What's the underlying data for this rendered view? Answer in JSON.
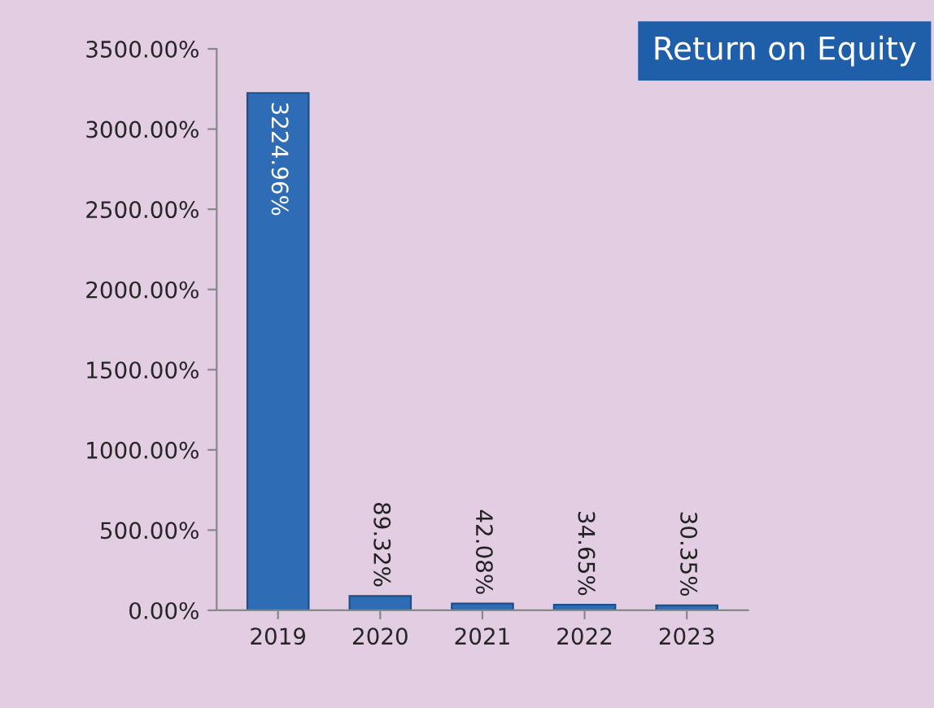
{
  "chart_data": {
    "type": "bar",
    "title": "Return on Equity",
    "categories": [
      "2019",
      "2020",
      "2021",
      "2022",
      "2023"
    ],
    "values": [
      3224.96,
      89.32,
      42.08,
      34.65,
      30.35
    ],
    "value_labels": [
      "3224.96%",
      "89.32%",
      "42.08%",
      "34.65%",
      "30.35%"
    ],
    "color": "#2e6cb5",
    "ylim": [
      0,
      3500
    ],
    "yticks": [
      {
        "value": 0,
        "label": "0.00%"
      },
      {
        "value": 500,
        "label": "500.00%"
      },
      {
        "value": 1000,
        "label": "1000.00%"
      },
      {
        "value": 1500,
        "label": "1500.00%"
      },
      {
        "value": 2000,
        "label": "2000.00%"
      },
      {
        "value": 2500,
        "label": "2500.00%"
      },
      {
        "value": 3000,
        "label": "3000.00%"
      },
      {
        "value": 3500,
        "label": "3500.00%"
      }
    ],
    "grid": false,
    "legend": false
  }
}
